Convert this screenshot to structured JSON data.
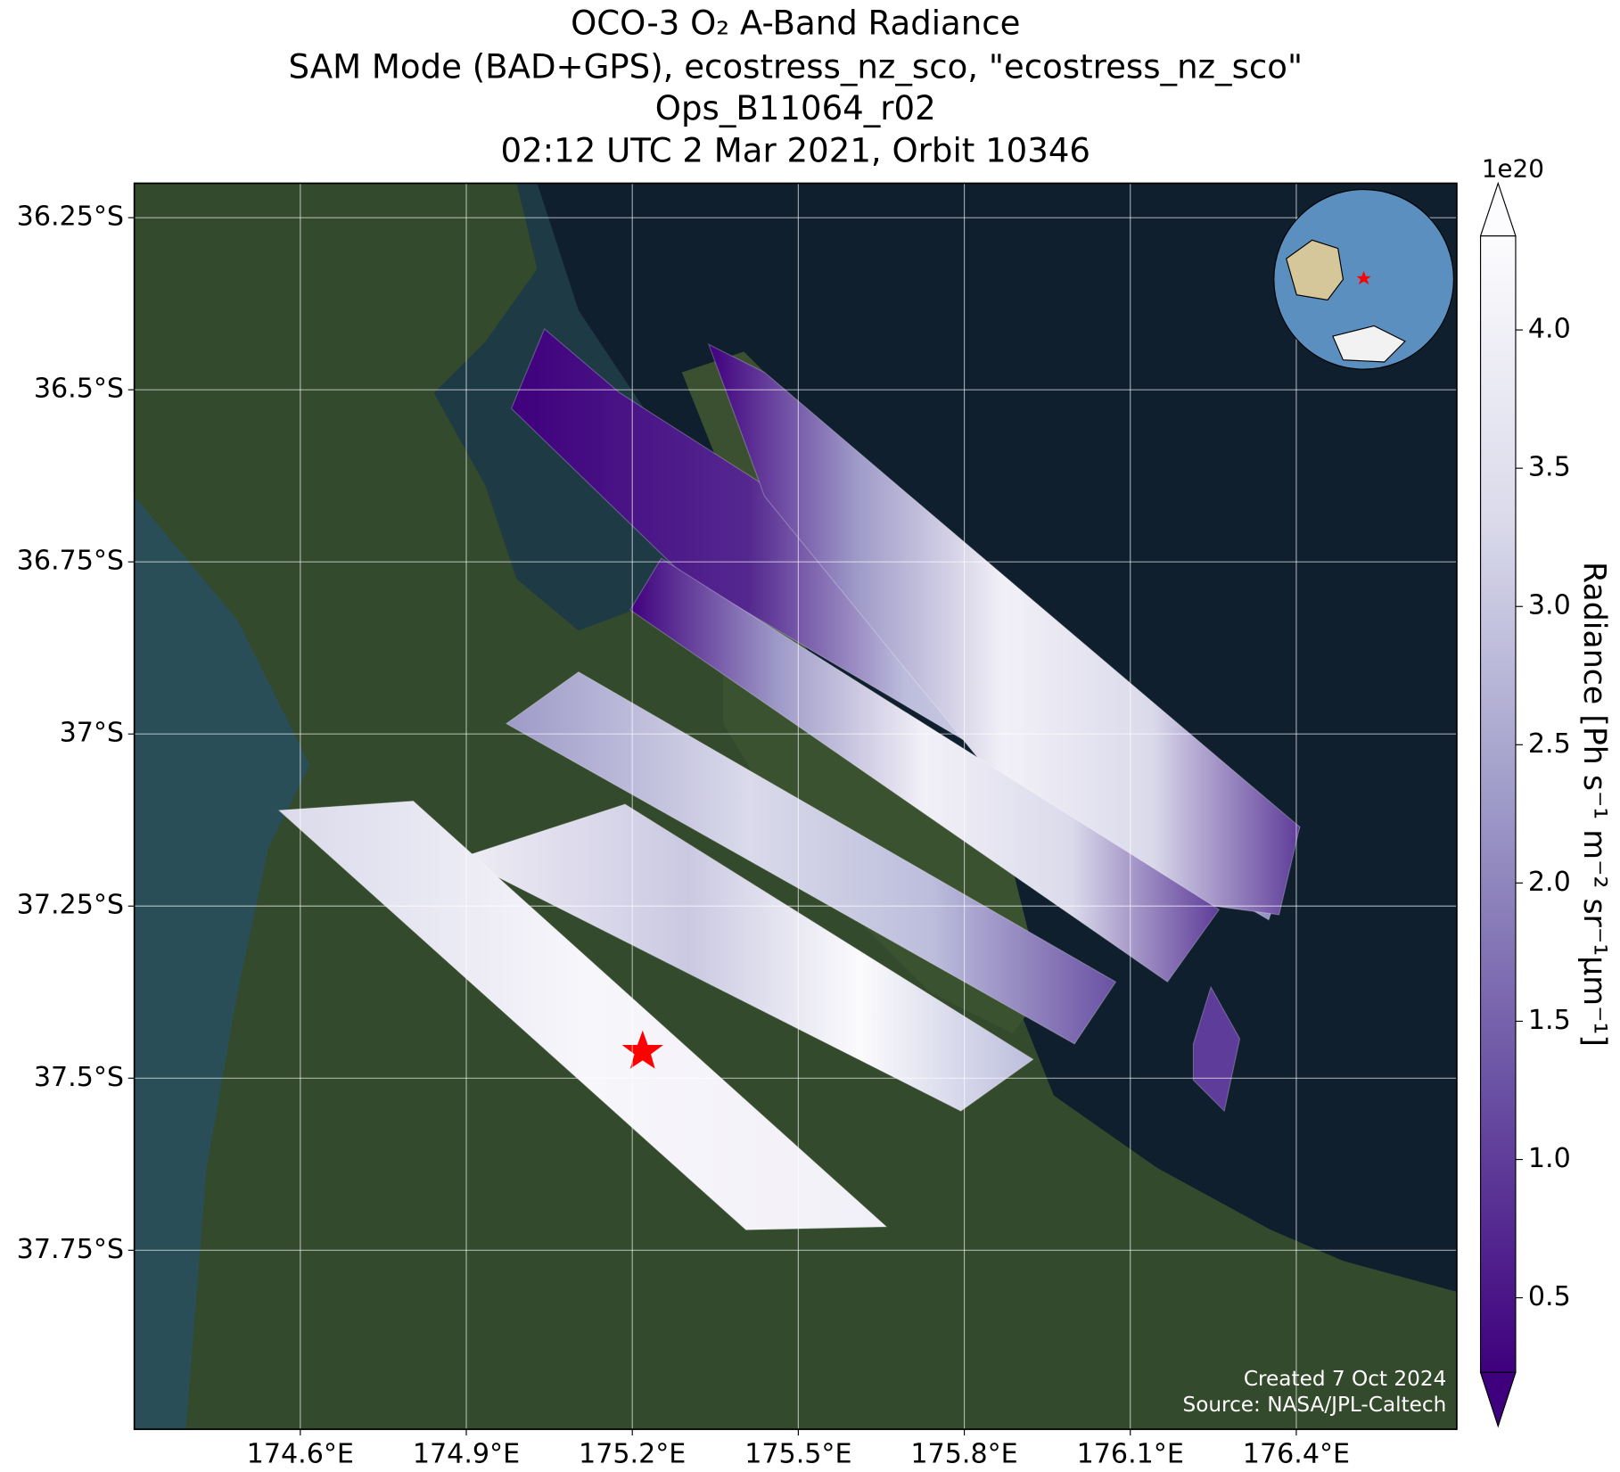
{
  "chart_data": {
    "type": "map",
    "title": [
      "OCO-3 O₂ A-Band Radiance",
      "SAM Mode (BAD+GPS), ecostress_nz_sco, \"ecostress_nz_sco\"",
      "Ops_B11064_r02",
      "02:12 UTC 2 Mar 2021, Orbit 10346"
    ],
    "xlim": [
      174.3,
      176.69
    ],
    "ylim": [
      -38.01,
      -36.2
    ],
    "xticks": [
      {
        "value": 174.6,
        "label": "174.6°E"
      },
      {
        "value": 174.9,
        "label": "174.9°E"
      },
      {
        "value": 175.2,
        "label": "175.2°E"
      },
      {
        "value": 175.5,
        "label": "175.5°E"
      },
      {
        "value": 175.8,
        "label": "175.8°E"
      },
      {
        "value": 176.1,
        "label": "176.1°E"
      },
      {
        "value": 176.4,
        "label": "176.4°E"
      }
    ],
    "yticks": [
      {
        "value": -36.25,
        "label": "36.25°S"
      },
      {
        "value": -36.5,
        "label": "36.5°S"
      },
      {
        "value": -36.75,
        "label": "36.75°S"
      },
      {
        "value": -37,
        "label": "37°S"
      },
      {
        "value": -37.25,
        "label": "37.25°S"
      },
      {
        "value": -37.5,
        "label": "37.5°S"
      },
      {
        "value": -37.75,
        "label": "37.75°S"
      }
    ],
    "grid": true,
    "colorbar": {
      "label": "Radiance [Ph s⁻¹ m⁻² sr⁻¹μm⁻¹]",
      "exponent": "1e20",
      "lim": [
        0.23,
        4.34
      ],
      "colors": [
        "#3f007d",
        "#6a51a3",
        "#9e9ac8",
        "#dadaeb",
        "#fcfbfd"
      ],
      "ticks": [
        0.5,
        {
          "value": 1,
          "label": "1.0"
        },
        1.5,
        {
          "value": 2,
          "label": "2.0"
        },
        2.5,
        {
          "value": 3,
          "label": "3.0"
        },
        3.5,
        {
          "value": 4,
          "label": "4.0"
        }
      ]
    },
    "credits": [
      "Created 7 Oct 2024",
      "Source: NASA/JPL-Caltech"
    ]
  }
}
